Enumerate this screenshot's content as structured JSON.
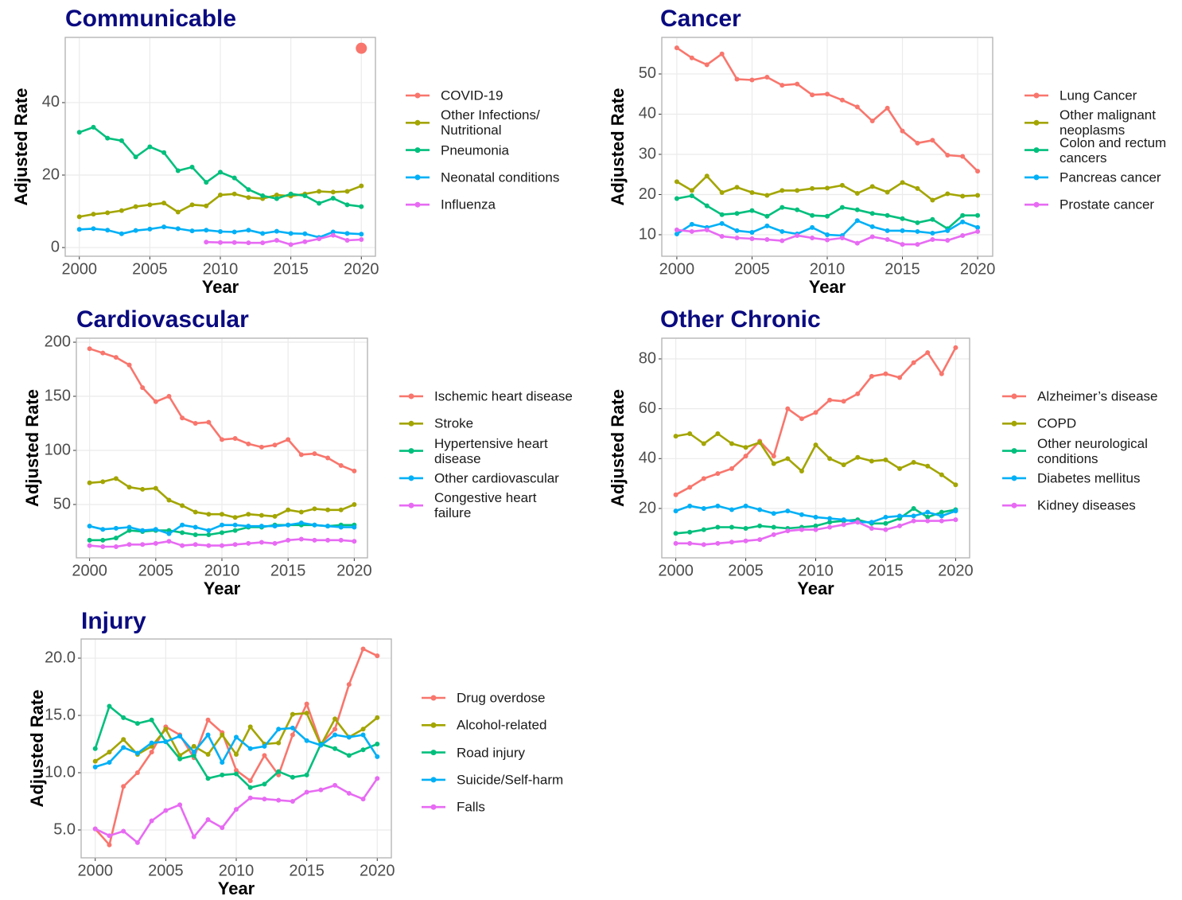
{
  "chart_data": [
    {
      "type": "line",
      "title": "Communicable",
      "x_label": "Year",
      "y_label": "Adjusted Rate",
      "x": [
        2000,
        2001,
        2002,
        2003,
        2004,
        2005,
        2006,
        2007,
        2008,
        2009,
        2010,
        2011,
        2012,
        2013,
        2014,
        2015,
        2016,
        2017,
        2018,
        2019,
        2020
      ],
      "xlim": [
        1999,
        2021
      ],
      "xticks": [
        2000,
        2005,
        2010,
        2015,
        2020
      ],
      "ylim": [
        -2.4,
        58
      ],
      "yticks": [
        0,
        20,
        40
      ],
      "grid": true,
      "legend": "right",
      "series": [
        {
          "name": "COVID-19",
          "color": "#F8766D",
          "values": [
            null,
            null,
            null,
            null,
            null,
            null,
            null,
            null,
            null,
            null,
            null,
            null,
            null,
            null,
            null,
            null,
            null,
            null,
            null,
            null,
            55
          ]
        },
        {
          "name": "Other Infections/ Nutritional",
          "color": "#A3A500",
          "values": [
            8.5,
            9.2,
            9.6,
            10.2,
            11.3,
            11.8,
            12.3,
            9.8,
            11.8,
            11.5,
            14.5,
            14.8,
            13.8,
            13.5,
            14.5,
            14.2,
            14.8,
            15.5,
            15.3,
            15.5,
            17
          ]
        },
        {
          "name": "Pneumonia",
          "color": "#00BF7D",
          "values": [
            31.8,
            33.2,
            30.2,
            29.5,
            25,
            27.8,
            26.2,
            21.2,
            22.2,
            18,
            20.8,
            19.2,
            16,
            14.3,
            13.5,
            14.8,
            14.3,
            12.2,
            13.6,
            11.8,
            11.3
          ]
        },
        {
          "name": "Neonatal conditions",
          "color": "#00B0F6",
          "values": [
            5,
            5.2,
            4.8,
            3.8,
            4.7,
            5.1,
            5.7,
            5.2,
            4.6,
            4.8,
            4.4,
            4.3,
            4.8,
            3.9,
            4.5,
            3.9,
            3.8,
            2.8,
            4.3,
            3.9,
            3.7
          ]
        },
        {
          "name": "Influenza",
          "color": "#E76BF3",
          "values": [
            null,
            null,
            null,
            null,
            null,
            null,
            null,
            null,
            null,
            1.5,
            1.4,
            1.4,
            1.3,
            1.3,
            2.0,
            0.8,
            1.6,
            2.4,
            3.4,
            2.0,
            2.2
          ]
        }
      ]
    },
    {
      "type": "line",
      "title": "Cancer",
      "x_label": "Year",
      "y_label": "Adjusted Rate",
      "x": [
        2000,
        2001,
        2002,
        2003,
        2004,
        2005,
        2006,
        2007,
        2008,
        2009,
        2010,
        2011,
        2012,
        2013,
        2014,
        2015,
        2016,
        2017,
        2018,
        2019,
        2020
      ],
      "xlim": [
        1999,
        2021
      ],
      "xticks": [
        2000,
        2005,
        2010,
        2015,
        2020
      ],
      "ylim": [
        4.65,
        59.1
      ],
      "yticks": [
        10,
        20,
        30,
        40,
        50
      ],
      "grid": true,
      "legend": "right",
      "series": [
        {
          "name": "Lung Cancer",
          "color": "#F8766D",
          "values": [
            56.5,
            54,
            52.3,
            55,
            48.7,
            48.5,
            49.2,
            47.2,
            47.5,
            44.8,
            45,
            43.5,
            41.8,
            38.3,
            41.5,
            35.8,
            32.8,
            33.5,
            29.8,
            29.5,
            25.8
          ]
        },
        {
          "name": "Other malignant neoplasms",
          "color": "#A3A500",
          "values": [
            23.2,
            21,
            24.6,
            20.5,
            21.8,
            20.5,
            19.8,
            21,
            21,
            21.5,
            21.6,
            22.3,
            20.3,
            22,
            20.6,
            23,
            21.5,
            18.6,
            20.2,
            19.6,
            19.8
          ]
        },
        {
          "name": "Colon and rectum cancers",
          "color": "#00BF7D",
          "values": [
            19,
            19.7,
            17.2,
            15,
            15.3,
            16,
            14.6,
            16.8,
            16.2,
            14.8,
            14.6,
            16.8,
            16.2,
            15.3,
            14.8,
            14,
            13,
            13.8,
            11.5,
            14.8,
            14.8
          ]
        },
        {
          "name": "Pancreas cancer",
          "color": "#00B0F6",
          "values": [
            10.2,
            12.6,
            11.8,
            12.8,
            11,
            10.6,
            12.2,
            10.8,
            10.2,
            11.8,
            10,
            9.8,
            13.5,
            12,
            11,
            11,
            10.8,
            10.4,
            11,
            13.2,
            11.8
          ]
        },
        {
          "name": "Prostate cancer",
          "color": "#E76BF3",
          "values": [
            11.2,
            10.8,
            11.2,
            9.6,
            9.2,
            9,
            8.8,
            8.5,
            9.8,
            9.2,
            8.7,
            9.2,
            7.9,
            9.5,
            8.8,
            7.6,
            7.6,
            8.8,
            8.6,
            9.8,
            10.8
          ]
        }
      ]
    },
    {
      "type": "line",
      "title": "Cardiovascular",
      "x_label": "Year",
      "y_label": "Adjusted Rate",
      "x": [
        2000,
        2001,
        2002,
        2003,
        2004,
        2005,
        2006,
        2007,
        2008,
        2009,
        2010,
        2011,
        2012,
        2013,
        2014,
        2015,
        2016,
        2017,
        2018,
        2019,
        2020
      ],
      "xlim": [
        1999,
        2021
      ],
      "xticks": [
        2000,
        2005,
        2010,
        2015,
        2020
      ],
      "ylim": [
        0.7,
        203.7
      ],
      "yticks": [
        50,
        100,
        150,
        200
      ],
      "grid": true,
      "legend": "right",
      "series": [
        {
          "name": "Ischemic heart disease",
          "color": "#F8766D",
          "values": [
            194,
            190,
            186,
            179,
            158,
            145,
            150,
            130,
            125,
            126,
            110,
            111,
            106,
            103,
            105,
            110,
            96,
            97,
            93,
            86,
            81
          ]
        },
        {
          "name": "Stroke",
          "color": "#A3A500",
          "values": [
            70,
            71,
            74,
            66,
            64,
            65,
            54,
            49,
            43,
            41,
            41,
            38,
            41,
            40,
            39,
            45,
            43,
            46,
            45,
            45,
            50
          ]
        },
        {
          "name": "Hypertensive heart disease",
          "color": "#00BF7D",
          "values": [
            17,
            17,
            19,
            26,
            25,
            26,
            26,
            24,
            22,
            22,
            24,
            26,
            29,
            29,
            31,
            31,
            31,
            31,
            30,
            31,
            31
          ]
        },
        {
          "name": "Other cardiovascular",
          "color": "#00B0F6",
          "values": [
            30,
            27,
            28,
            29,
            26,
            27,
            23,
            31,
            29,
            26,
            31,
            31,
            30,
            30,
            30,
            31,
            33,
            31,
            30,
            29,
            29
          ]
        },
        {
          "name": "Congestive heart failure",
          "color": "#E76BF3",
          "values": [
            12,
            11,
            11,
            13,
            13,
            14,
            16,
            12,
            13,
            12,
            12,
            13,
            14,
            15,
            14,
            17,
            18,
            17,
            17,
            17,
            16
          ]
        }
      ]
    },
    {
      "type": "line",
      "title": "Other Chronic",
      "x_label": "Year",
      "y_label": "Adjusted Rate",
      "x": [
        2000,
        2001,
        2002,
        2003,
        2004,
        2005,
        2006,
        2007,
        2008,
        2009,
        2010,
        2011,
        2012,
        2013,
        2014,
        2015,
        2016,
        2017,
        2018,
        2019,
        2020
      ],
      "xlim": [
        1999,
        2021
      ],
      "xticks": [
        2000,
        2005,
        2010,
        2015,
        2020
      ],
      "ylim": [
        0.2,
        88.3
      ],
      "yticks": [
        20,
        40,
        60,
        80
      ],
      "grid": true,
      "legend": "right",
      "series": [
        {
          "name": "Alzheimer’s disease",
          "color": "#F8766D",
          "values": [
            25.5,
            28.5,
            32,
            34,
            36,
            41,
            47,
            41,
            60,
            56,
            58.5,
            63.5,
            63,
            66,
            73,
            74,
            72.5,
            78.5,
            82.5,
            74,
            84.5
          ]
        },
        {
          "name": "COPD",
          "color": "#A3A500",
          "values": [
            49,
            50,
            46,
            50,
            46,
            44.5,
            46.5,
            38,
            40,
            35,
            45.5,
            40,
            37.5,
            40.5,
            39,
            39.5,
            36,
            38.5,
            37,
            33.5,
            29.5
          ]
        },
        {
          "name": "Other neurological conditions",
          "color": "#00BF7D",
          "values": [
            10,
            10.5,
            11.5,
            12.5,
            12.5,
            12,
            13,
            12.5,
            12,
            12.5,
            13,
            14.5,
            15,
            15.5,
            14,
            14,
            16,
            20,
            16.5,
            18.5,
            19.5
          ]
        },
        {
          "name": "Diabetes mellitus",
          "color": "#00B0F6",
          "values": [
            19,
            21,
            20,
            21,
            19.5,
            21,
            19.5,
            18,
            19,
            17.5,
            16.5,
            16,
            15.5,
            14.5,
            14.5,
            16.5,
            17,
            17,
            18.5,
            17,
            19
          ]
        },
        {
          "name": "Kidney diseases",
          "color": "#E76BF3",
          "values": [
            6,
            6,
            5.5,
            6,
            6.5,
            7,
            7.5,
            9.5,
            11,
            11.5,
            11.5,
            12.5,
            13.5,
            14.5,
            12,
            11.5,
            13,
            15,
            15,
            15,
            15.5
          ]
        }
      ]
    },
    {
      "type": "line",
      "title": "Injury",
      "x_label": "Year",
      "y_label": "Adjusted Rate",
      "x": [
        2000,
        2001,
        2002,
        2003,
        2004,
        2005,
        2006,
        2007,
        2008,
        2009,
        2010,
        2011,
        2012,
        2013,
        2014,
        2015,
        2016,
        2017,
        2018,
        2019,
        2020
      ],
      "xlim": [
        1999,
        2021
      ],
      "xticks": [
        2000,
        2005,
        2010,
        2015,
        2020
      ],
      "ylim": [
        2.57,
        21.67
      ],
      "yticks": [
        {
          "value": 5,
          "label": "5.0"
        },
        {
          "value": 10,
          "label": "10.0"
        },
        {
          "value": 15,
          "label": "15.0"
        },
        {
          "value": 20,
          "label": "20.0"
        }
      ],
      "grid": true,
      "legend": "right",
      "series": [
        {
          "name": "Drug overdose",
          "color": "#F8766D",
          "values": [
            5.1,
            3.7,
            8.8,
            10,
            11.8,
            14,
            13.3,
            11.3,
            14.6,
            13.5,
            10.2,
            9.3,
            11.5,
            9.8,
            13.3,
            16,
            12.5,
            13.8,
            17.7,
            20.8,
            20.2
          ]
        },
        {
          "name": "Alcohol-related",
          "color": "#A3A500",
          "values": [
            11,
            11.8,
            12.9,
            11.6,
            12.3,
            13.8,
            11.5,
            12.3,
            11.6,
            13.3,
            11.6,
            14,
            12.5,
            12.6,
            15.1,
            15.2,
            12.4,
            14.7,
            13.1,
            13.8,
            14.8
          ]
        },
        {
          "name": "Road injury",
          "color": "#00BF7D",
          "values": [
            12.1,
            15.8,
            14.8,
            14.3,
            14.6,
            12.7,
            11.2,
            11.5,
            9.5,
            9.8,
            9.9,
            8.7,
            9,
            10.1,
            9.6,
            9.8,
            12.5,
            12.1,
            11.5,
            12,
            12.5
          ]
        },
        {
          "name": "Suicide/Self-harm",
          "color": "#00B0F6",
          "values": [
            10.5,
            10.9,
            12.2,
            11.7,
            12.6,
            12.7,
            13.2,
            11.8,
            13.3,
            10.9,
            13.1,
            12.1,
            12.3,
            13.8,
            13.9,
            12.8,
            12.4,
            13.3,
            13.1,
            13.3,
            11.4
          ]
        },
        {
          "name": "Falls",
          "color": "#E76BF3",
          "values": [
            5.1,
            4.5,
            4.9,
            3.9,
            5.8,
            6.7,
            7.2,
            4.4,
            5.9,
            5.2,
            6.8,
            7.8,
            7.7,
            7.6,
            7.5,
            8.3,
            8.5,
            8.9,
            8.2,
            7.7,
            9.5
          ]
        }
      ]
    }
  ]
}
